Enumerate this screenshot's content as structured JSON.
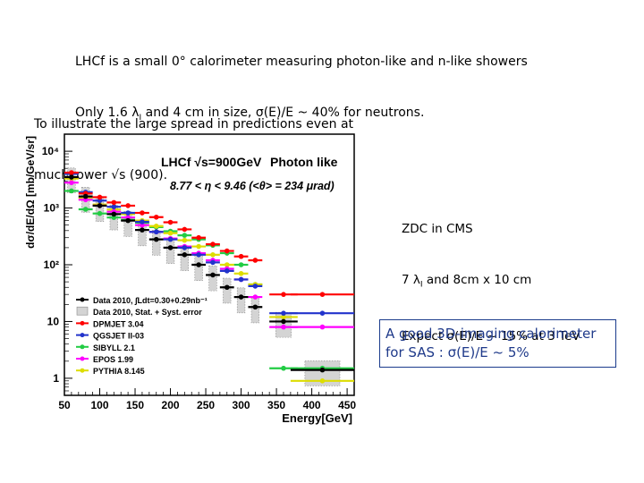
{
  "header": {
    "line1": "LHCf is a small 0° calorimeter measuring photon-like and n-like showers",
    "line2_a": "Only 1.6 λ",
    "line2_sub": "I",
    "line2_b": " and 4 cm in size, σ(E)/E ~ 40% for neutrons."
  },
  "note": {
    "line1": "To illustrate the large spread in predictions even at",
    "line2": "much lower √s (900)."
  },
  "zdc": {
    "line1": "ZDC in CMS",
    "line2_a": "7 λ",
    "line2_sub": "I",
    "line2_b": " and 8cm x 10 cm",
    "line3": "Expect σ(E)/E ~ 15% at 3 TeV"
  },
  "sas_box": {
    "line1": "A good 3D-imaging calorimeter",
    "line2": "for SAS : σ(E)/E ~ 5%",
    "border_color": "#1a3b8c",
    "text_color": "#1f3a8a"
  },
  "chart_data": {
    "type": "line",
    "title": "LHCf √s=900GeV",
    "subtitle": "Photon like",
    "annotation": "8.77 < η < 9.46 (<θ> = 234 μrad)",
    "xlabel": "Energy[GeV]",
    "ylabel": "dσ/dE/dΩ [mb/GeV/sr]",
    "x_ticks": [
      "50",
      "100",
      "150",
      "200",
      "250",
      "300",
      "350",
      "400",
      "450"
    ],
    "y_ticks": [
      "1",
      "10",
      "10²",
      "10³",
      "10⁴"
    ],
    "xlim": [
      50,
      460
    ],
    "ylim": [
      0.5,
      20000
    ],
    "y_scale": "log",
    "x": [
      60,
      80,
      100,
      120,
      140,
      160,
      180,
      200,
      220,
      240,
      260,
      280,
      300,
      320,
      360,
      415
    ],
    "series": [
      {
        "name": "Data 2010, ∫Ldt=0.30+0.29nb⁻¹",
        "color": "#000000",
        "marker": "dot",
        "values": [
          3500,
          1600,
          1100,
          780,
          600,
          410,
          280,
          200,
          150,
          100,
          66,
          40,
          27,
          18,
          10,
          1.4
        ]
      },
      {
        "name": "Data 2010, Stat. + Syst. error",
        "color": "#9a9a9a",
        "marker": "band",
        "values": [
          3500,
          1600,
          1100,
          780,
          600,
          410,
          280,
          200,
          150,
          100,
          66,
          40,
          27,
          18,
          10,
          1.4
        ]
      },
      {
        "name": "DPMJET 3.04",
        "color": "#ff0000",
        "marker": "dot",
        "values": [
          4200,
          1800,
          1550,
          1250,
          1100,
          820,
          690,
          560,
          420,
          300,
          230,
          175,
          140,
          120,
          30,
          30
        ]
      },
      {
        "name": "QGSJET II-03",
        "color": "#2233cc",
        "marker": "dot",
        "values": [
          4000,
          1900,
          1350,
          1050,
          820,
          570,
          380,
          280,
          200,
          150,
          110,
          78,
          55,
          42,
          14,
          14
        ]
      },
      {
        "name": "SIBYLL 2.1",
        "color": "#22cc44",
        "marker": "dot",
        "values": [
          2000,
          950,
          800,
          680,
          620,
          550,
          460,
          390,
          330,
          280,
          220,
          160,
          100,
          45,
          1.5,
          1.5
        ]
      },
      {
        "name": "EPOS 1.99",
        "color": "#ff00ff",
        "marker": "dot",
        "values": [
          2800,
          1400,
          1100,
          860,
          680,
          500,
          380,
          290,
          210,
          160,
          120,
          85,
          55,
          27,
          8,
          8
        ]
      },
      {
        "name": "PYTHIA 8.145",
        "color": "#dddd00",
        "marker": "dot",
        "values": [
          3300,
          1500,
          1150,
          940,
          780,
          600,
          480,
          360,
          270,
          210,
          150,
          100,
          70,
          45,
          12,
          0.9
        ]
      }
    ],
    "legend_position": "bottom-left",
    "grid": false
  }
}
